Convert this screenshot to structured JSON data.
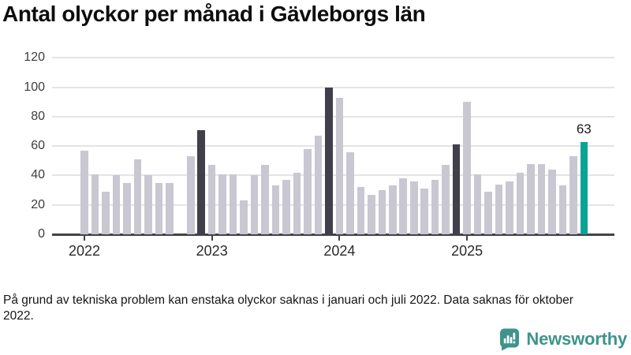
{
  "chart_data": {
    "type": "bar",
    "title": "Antal olyckor per månad i Gävleborgs län",
    "xlabel": "",
    "ylabel": "",
    "ylim": [
      0,
      120
    ],
    "y_ticks": [
      0,
      20,
      40,
      60,
      80,
      100,
      120
    ],
    "grid": "horizontal",
    "legend": "none",
    "series_name": "Antal olyckor per månad",
    "colors": {
      "default": "#c9c7d2",
      "december": "#413f4c",
      "current": "#0aa396"
    },
    "points": [
      {
        "month": "2022-01",
        "value": 57,
        "role": "default"
      },
      {
        "month": "2022-02",
        "value": 41,
        "role": "default"
      },
      {
        "month": "2022-03",
        "value": 29,
        "role": "default"
      },
      {
        "month": "2022-04",
        "value": 40,
        "role": "default"
      },
      {
        "month": "2022-05",
        "value": 35,
        "role": "default"
      },
      {
        "month": "2022-06",
        "value": 51,
        "role": "default"
      },
      {
        "month": "2022-07",
        "value": 40,
        "role": "default"
      },
      {
        "month": "2022-08",
        "value": 35,
        "role": "default"
      },
      {
        "month": "2022-09",
        "value": 35,
        "role": "default"
      },
      {
        "month": "2022-10",
        "value": null,
        "role": "default"
      },
      {
        "month": "2022-11",
        "value": 53,
        "role": "default"
      },
      {
        "month": "2022-12",
        "value": 71,
        "role": "december"
      },
      {
        "month": "2023-01",
        "value": 47,
        "role": "default"
      },
      {
        "month": "2023-02",
        "value": 41,
        "role": "default"
      },
      {
        "month": "2023-03",
        "value": 41,
        "role": "default"
      },
      {
        "month": "2023-04",
        "value": 23,
        "role": "default"
      },
      {
        "month": "2023-05",
        "value": 40,
        "role": "default"
      },
      {
        "month": "2023-06",
        "value": 47,
        "role": "default"
      },
      {
        "month": "2023-07",
        "value": 33,
        "role": "default"
      },
      {
        "month": "2023-08",
        "value": 37,
        "role": "default"
      },
      {
        "month": "2023-09",
        "value": 42,
        "role": "default"
      },
      {
        "month": "2023-10",
        "value": 58,
        "role": "default"
      },
      {
        "month": "2023-11",
        "value": 67,
        "role": "default"
      },
      {
        "month": "2023-12",
        "value": 100,
        "role": "december"
      },
      {
        "month": "2024-01",
        "value": 93,
        "role": "default"
      },
      {
        "month": "2024-02",
        "value": 56,
        "role": "default"
      },
      {
        "month": "2024-03",
        "value": 32,
        "role": "default"
      },
      {
        "month": "2024-04",
        "value": 27,
        "role": "default"
      },
      {
        "month": "2024-05",
        "value": 30,
        "role": "default"
      },
      {
        "month": "2024-06",
        "value": 33,
        "role": "default"
      },
      {
        "month": "2024-07",
        "value": 38,
        "role": "default"
      },
      {
        "month": "2024-08",
        "value": 36,
        "role": "default"
      },
      {
        "month": "2024-09",
        "value": 31,
        "role": "default"
      },
      {
        "month": "2024-10",
        "value": 37,
        "role": "default"
      },
      {
        "month": "2024-11",
        "value": 47,
        "role": "default"
      },
      {
        "month": "2024-12",
        "value": 61,
        "role": "december"
      },
      {
        "month": "2025-01",
        "value": 90,
        "role": "default"
      },
      {
        "month": "2025-02",
        "value": 41,
        "role": "default"
      },
      {
        "month": "2025-03",
        "value": 29,
        "role": "default"
      },
      {
        "month": "2025-04",
        "value": 34,
        "role": "default"
      },
      {
        "month": "2025-05",
        "value": 36,
        "role": "default"
      },
      {
        "month": "2025-06",
        "value": 42,
        "role": "default"
      },
      {
        "month": "2025-07",
        "value": 48,
        "role": "default"
      },
      {
        "month": "2025-08",
        "value": 48,
        "role": "default"
      },
      {
        "month": "2025-09",
        "value": 44,
        "role": "default"
      },
      {
        "month": "2025-10",
        "value": 33,
        "role": "default"
      },
      {
        "month": "2025-11",
        "value": 53,
        "role": "default"
      },
      {
        "month": "2025-12",
        "value": 63,
        "role": "current"
      }
    ],
    "x_tick_years": [
      {
        "label": "2022",
        "month_index": 0
      },
      {
        "label": "2023",
        "month_index": 12
      },
      {
        "label": "2024",
        "month_index": 24
      },
      {
        "label": "2025",
        "month_index": 36
      }
    ],
    "annotation": {
      "text": "63",
      "month_index": 47
    },
    "missing_months": [
      "2022-10"
    ]
  },
  "footnote": "På grund av tekniska problem kan enstaka olyckor saknas i januari och juli 2022. Data saknas för oktober 2022.",
  "logo": {
    "text": "Newsworthy"
  }
}
